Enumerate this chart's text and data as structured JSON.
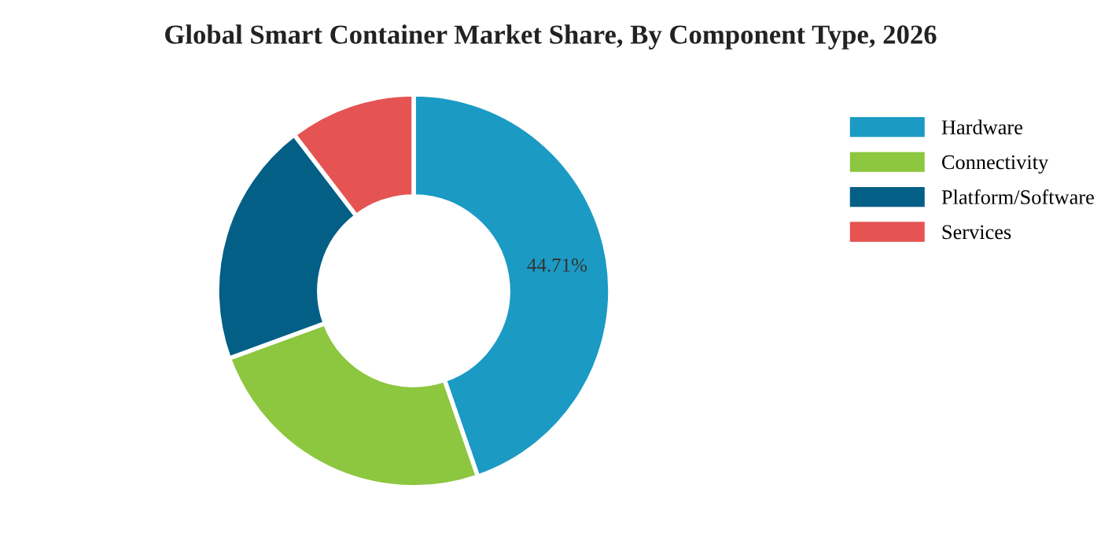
{
  "chart_data": {
    "type": "donut",
    "title": "Global Smart Container Market Share, By Component Type, 2026",
    "categories": [
      "Hardware",
      "Connectivity",
      "Platform/Software",
      "Services"
    ],
    "values": [
      44.71,
      24.7,
      20.2,
      10.39
    ],
    "colors": [
      "#1b9ac4",
      "#8dc63f",
      "#045f87",
      "#e55353"
    ],
    "value_labels": [
      "44.71%",
      null,
      null,
      null
    ],
    "legend": "right"
  }
}
